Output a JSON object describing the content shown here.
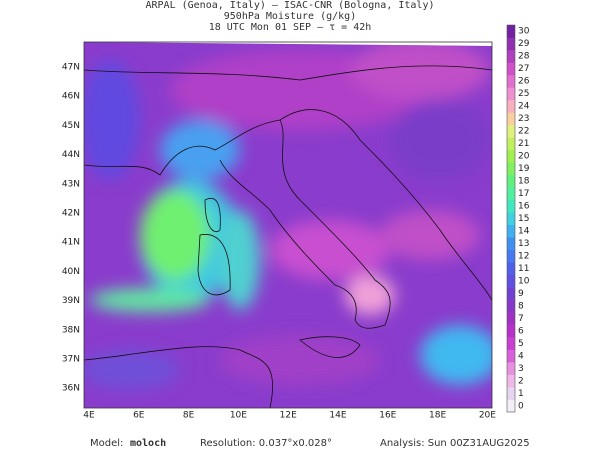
{
  "header": [
    "ARPAL (Genoa, Italy)  –  ISAC-CNR (Bologna, Italy)",
    "950hPa Moisture (g/kg)",
    "18 UTC Mon 01 SEP  –  τ = 42h"
  ],
  "lat_labels": [
    "47N",
    "46N",
    "45N",
    "44N",
    "43N",
    "42N",
    "41N",
    "40N",
    "39N",
    "38N",
    "37N",
    "36N"
  ],
  "lon_labels": [
    "4E",
    "6E",
    "8E",
    "10E",
    "12E",
    "14E",
    "16E",
    "18E",
    "20E"
  ],
  "colorbar": {
    "labels": [
      "0",
      "1",
      "2",
      "3",
      "4",
      "5",
      "6",
      "7",
      "8",
      "9",
      "10",
      "11",
      "12",
      "13",
      "14",
      "15",
      "16",
      "17",
      "18",
      "19",
      "20",
      "21",
      "22",
      "23",
      "24",
      "25",
      "26",
      "27",
      "28",
      "29",
      "30"
    ],
    "colors": [
      "#f4eef8",
      "#e6d4f0",
      "#f0b8e8",
      "#e890e0",
      "#d860d8",
      "#c840d0",
      "#b830c8",
      "#a030c0",
      "#8838c8",
      "#7040d0",
      "#6050e0",
      "#5060e8",
      "#4878f0",
      "#4090f0",
      "#40b0f0",
      "#40d0e0",
      "#40e8c0",
      "#50f0a0",
      "#60f080",
      "#80f060",
      "#a0f050",
      "#c0f060",
      "#e0f080",
      "#f8d0a0",
      "#f8b0c0",
      "#f090d0",
      "#e070d0",
      "#d050c8",
      "#b040c0",
      "#9030b0",
      "#7020a0"
    ]
  },
  "footer": {
    "model_label": "Model:",
    "model": "moloch",
    "resolution": "Resolution: 0.037°x0.028°",
    "analysis": "Analysis: Sun 00Z31AUG2025"
  }
}
